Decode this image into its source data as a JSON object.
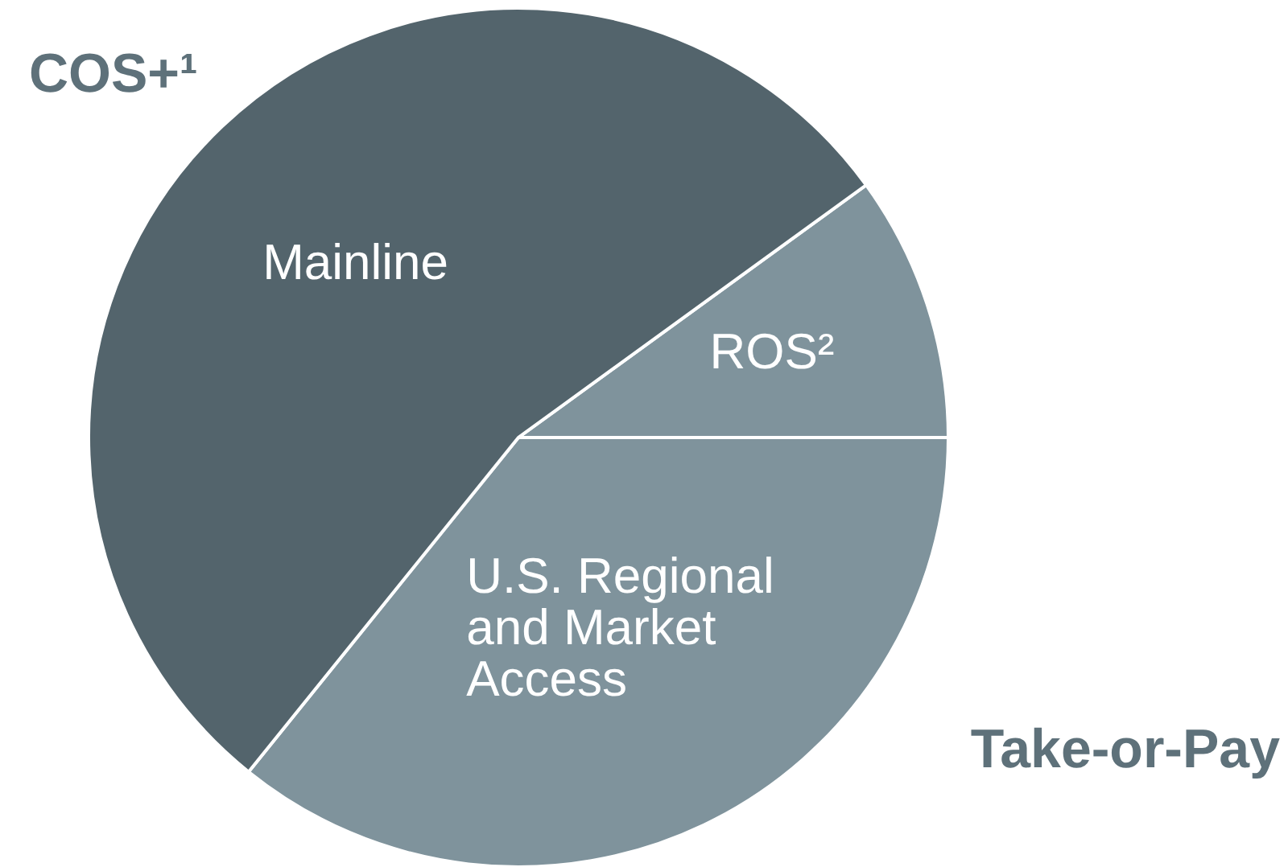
{
  "chart_data": {
    "type": "pie",
    "categories": [
      "ROS²",
      "U.S. Regional and Market Access",
      "Mainline"
    ],
    "values": [
      10,
      35.8,
      54.2
    ],
    "colors": [
      "#7f939c",
      "#7f939c",
      "#53646c"
    ],
    "annotations": [
      "COS+¹",
      "Take-or-Pay"
    ]
  }
}
